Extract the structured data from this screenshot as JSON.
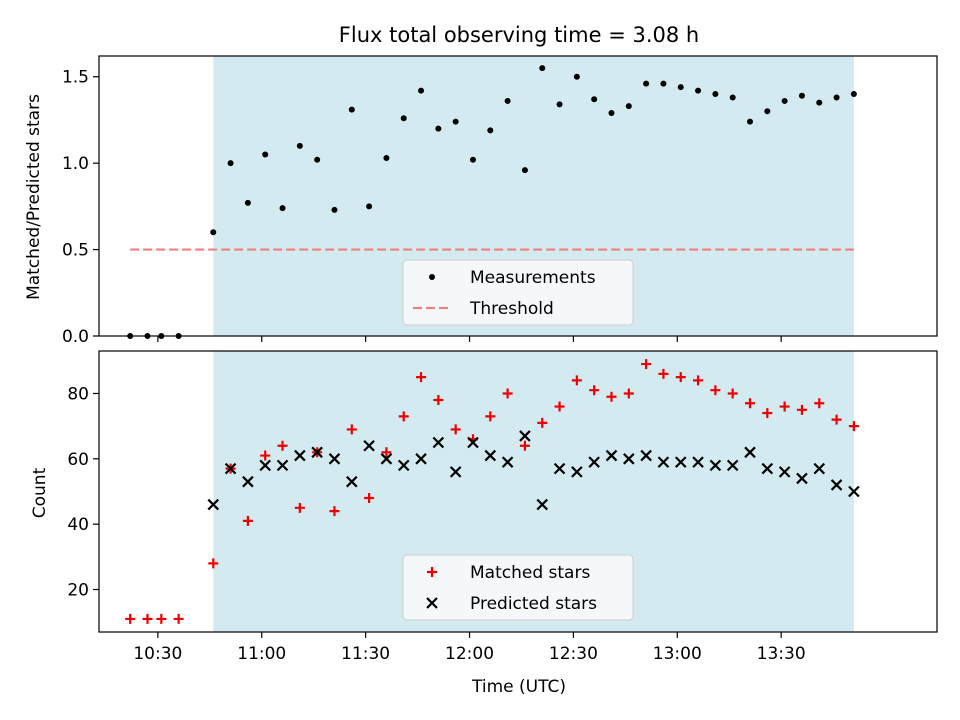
{
  "title": "Flux total observing time = 3.08 h",
  "xlabel": "Time (UTC)",
  "colors": {
    "span": "#d3eaf0",
    "threshold": "#f07f7f",
    "measurements": "#000000",
    "matched": "#ee0000",
    "predicted": "#000000"
  },
  "chart_data": [
    {
      "type": "scatter",
      "ylabel": "Matched/Predicted stars",
      "ylim": [
        0,
        1.62
      ],
      "yticks": [
        "0.0",
        "0.5",
        "1.0",
        "1.5"
      ],
      "yticks_values": [
        0,
        0.5,
        1.0,
        1.5
      ],
      "xlim": [
        "10:13",
        "14:15"
      ],
      "highlight_span": [
        "10:46",
        "13:51"
      ],
      "threshold": 0.5,
      "legend": {
        "placement": "lower-center",
        "entries": [
          "Measurements",
          "Threshold"
        ]
      },
      "series": [
        {
          "name": "Measurements",
          "marker": "dot",
          "x": [
            "10:22",
            "10:27",
            "10:31",
            "10:36",
            "10:46",
            "10:51",
            "10:56",
            "11:01",
            "11:06",
            "11:11",
            "11:16",
            "11:21",
            "11:26",
            "11:31",
            "11:36",
            "11:41",
            "11:46",
            "11:51",
            "11:56",
            "12:01",
            "12:06",
            "12:11",
            "12:16",
            "12:21",
            "12:26",
            "12:31",
            "12:36",
            "12:41",
            "12:46",
            "12:51",
            "12:56",
            "13:01",
            "13:06",
            "13:11",
            "13:16",
            "13:21",
            "13:26",
            "13:31",
            "13:36",
            "13:41",
            "13:46"
          ],
          "values": [
            0,
            0,
            0,
            0,
            0.6,
            1.0,
            0.77,
            1.05,
            0.74,
            1.1,
            1.02,
            0.73,
            1.31,
            0.75,
            1.03,
            1.26,
            1.42,
            1.2,
            1.24,
            1.02,
            1.19,
            1.36,
            0.96,
            1.55,
            1.34,
            1.5,
            1.37,
            1.29,
            1.33,
            1.46,
            1.46,
            1.44,
            1.42,
            1.4,
            1.38,
            1.24,
            1.3,
            1.36,
            1.39,
            1.35,
            1.38
          ]
        },
        {
          "name": "Threshold",
          "marker": "dashed-line",
          "x": [
            "10:22",
            "13:51"
          ],
          "values": [
            0.5,
            0.5
          ]
        }
      ],
      "extra_point": {
        "x": "13:51",
        "value": 1.4
      }
    },
    {
      "type": "scatter",
      "ylabel": "Count",
      "ylim": [
        7,
        93
      ],
      "yticks": [
        "20",
        "40",
        "60",
        "80"
      ],
      "yticks_values": [
        20,
        40,
        60,
        80
      ],
      "xlim": [
        "10:13",
        "14:15"
      ],
      "xticks": [
        "10:30",
        "11:00",
        "11:30",
        "12:00",
        "12:30",
        "13:00",
        "13:30"
      ],
      "highlight_span": [
        "10:46",
        "13:51"
      ],
      "legend": {
        "placement": "lower-center",
        "entries": [
          "Matched stars",
          "Predicted stars"
        ]
      },
      "series": [
        {
          "name": "Matched stars",
          "marker": "plus",
          "x": [
            "10:22",
            "10:27",
            "10:31",
            "10:36",
            "10:46",
            "10:51",
            "10:56",
            "11:01",
            "11:06",
            "11:11",
            "11:16",
            "11:21",
            "11:26",
            "11:31",
            "11:36",
            "11:41",
            "11:46",
            "11:51",
            "11:56",
            "12:01",
            "12:06",
            "12:11",
            "12:16",
            "12:21",
            "12:26",
            "12:31",
            "12:36",
            "12:41",
            "12:46",
            "12:51",
            "12:56",
            "13:01",
            "13:06",
            "13:11",
            "13:16",
            "13:21",
            "13:26",
            "13:31",
            "13:36",
            "13:41",
            "13:46",
            "13:51"
          ],
          "values": [
            11,
            11,
            11,
            11,
            28,
            57,
            41,
            61,
            64,
            45,
            62,
            44,
            69,
            48,
            62,
            73,
            85,
            78,
            69,
            66,
            73,
            80,
            64,
            71,
            76,
            84,
            81,
            79,
            80,
            89,
            86,
            85,
            84,
            81,
            80,
            77,
            74,
            76,
            75,
            77,
            72,
            70
          ]
        },
        {
          "name": "Predicted stars",
          "marker": "x",
          "x": [
            "10:46",
            "10:51",
            "10:56",
            "11:01",
            "11:06",
            "11:11",
            "11:16",
            "11:21",
            "11:26",
            "11:31",
            "11:36",
            "11:41",
            "11:46",
            "11:51",
            "11:56",
            "12:01",
            "12:06",
            "12:11",
            "12:16",
            "12:21",
            "12:26",
            "12:31",
            "12:36",
            "12:41",
            "12:46",
            "12:51",
            "12:56",
            "13:01",
            "13:06",
            "13:11",
            "13:16",
            "13:21",
            "13:26",
            "13:31",
            "13:36",
            "13:41",
            "13:46",
            "13:51"
          ],
          "values": [
            46,
            57,
            53,
            58,
            58,
            61,
            62,
            60,
            53,
            64,
            60,
            58,
            60,
            65,
            56,
            65,
            61,
            59,
            67,
            46,
            57,
            56,
            59,
            61,
            60,
            61,
            59,
            59,
            59,
            58,
            58,
            62,
            57,
            56,
            54,
            57,
            52,
            50
          ]
        }
      ]
    }
  ]
}
